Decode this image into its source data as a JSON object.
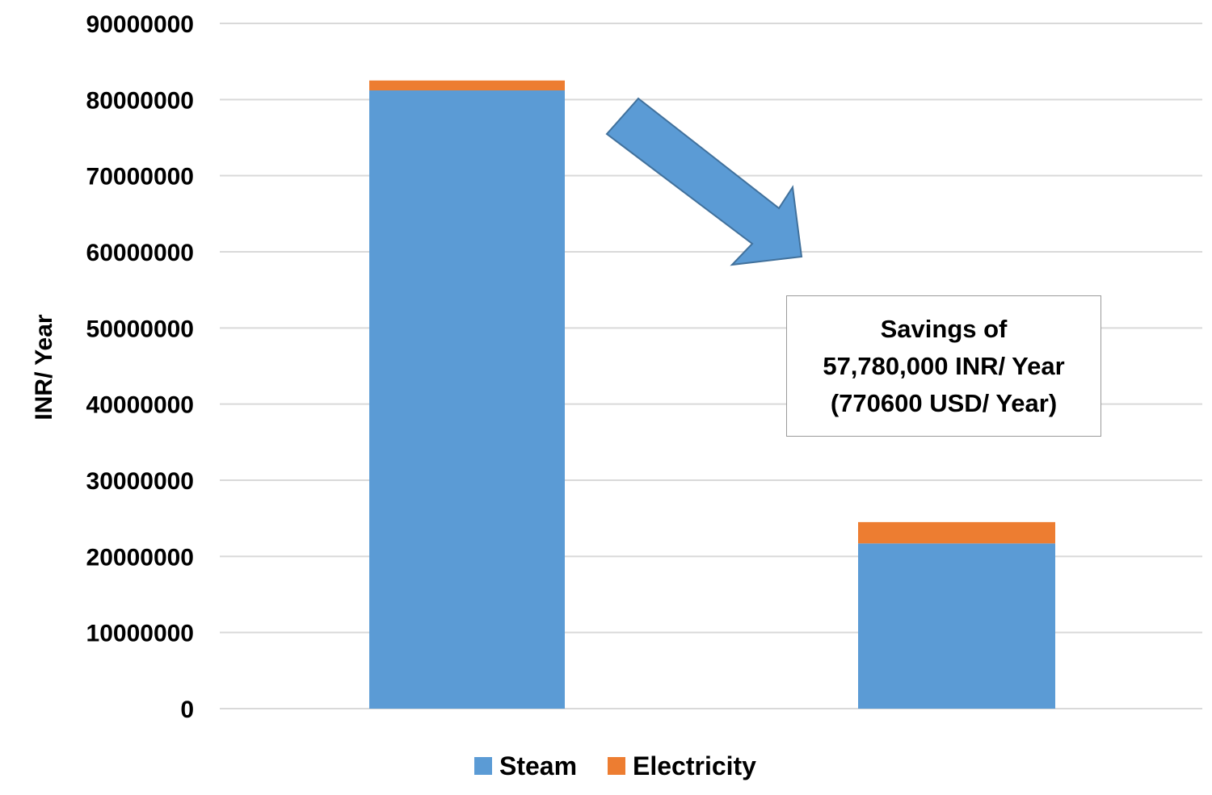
{
  "chart_data": {
    "type": "bar",
    "stacked": true,
    "categories": [
      "",
      ""
    ],
    "series": [
      {
        "name": "Steam",
        "color": "#5b9bd5",
        "values": [
          81200000,
          21700000
        ]
      },
      {
        "name": "Electricity",
        "color": "#ed7d31",
        "values": [
          1300000,
          2800000
        ]
      }
    ],
    "ylabel": "INR/ Year",
    "ylim": [
      0,
      90000000
    ],
    "yticks": [
      "0",
      "10000000",
      "20000000",
      "30000000",
      "40000000",
      "50000000",
      "60000000",
      "70000000",
      "80000000",
      "90000000"
    ],
    "ytick_values": [
      0,
      10000000,
      20000000,
      30000000,
      40000000,
      50000000,
      60000000,
      70000000,
      80000000,
      90000000
    ],
    "grid": true,
    "legend": "bottom",
    "arrow_color": "#5b9bd5",
    "annotation": {
      "lines": [
        "Savings of",
        "57,780,000 INR/ Year",
        "(770600 USD/ Year)"
      ]
    }
  }
}
